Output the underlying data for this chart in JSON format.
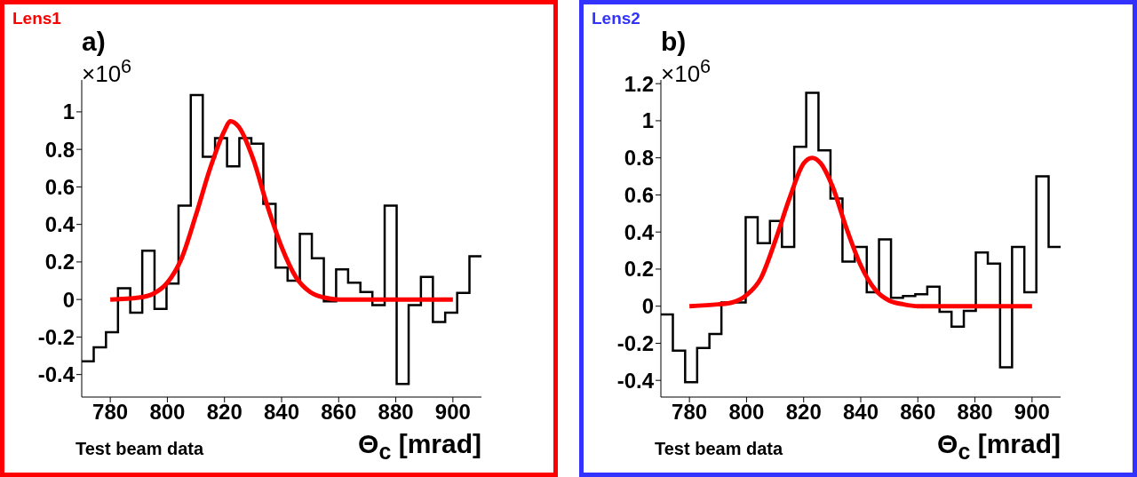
{
  "chart_data": [
    {
      "type": "histogram",
      "title": "Lens1",
      "subtitle": "a)",
      "xlabel": "Θ$_{c}$ [mrad]",
      "annotations": [
        "×10$^{6}$",
        "Test beam data"
      ],
      "bins": [
        770,
        774.2,
        778.5,
        782.7,
        787,
        791.2,
        795.5,
        799.7,
        803.9,
        808.2,
        812.4,
        816.7,
        820.9,
        825.2,
        829.4,
        833.6,
        837.9,
        842.1,
        846.4,
        850.6,
        854.8,
        859.1,
        863.3,
        867.6,
        871.8,
        876.1,
        880.3,
        884.5,
        888.8,
        893,
        897.3,
        901.5,
        905.8,
        910
      ],
      "series": [
        {
          "color": "#000000",
          "values": [
            -0.33,
            -0.255,
            -0.175,
            0.06,
            -0.07,
            0.26,
            -0.05,
            0.085,
            0.5,
            1.09,
            0.76,
            0.86,
            0.71,
            0.86,
            0.83,
            0.51,
            0.17,
            0.1,
            0.35,
            0.22,
            -0.01,
            0.16,
            0.09,
            0.04,
            -0.03,
            0.5,
            -0.45,
            -0.03,
            0.12,
            -0.12,
            -0.07,
            0.035,
            0.23
          ]
        },
        {
          "type": "line",
          "color": "#ff0000",
          "x": [
            780,
            790,
            795,
            800,
            805,
            810,
            815,
            820,
            822,
            825,
            830,
            835,
            840,
            845,
            850,
            855,
            860,
            900
          ],
          "values": [
            0,
            0.01,
            0.03,
            0.09,
            0.22,
            0.45,
            0.7,
            0.9,
            0.95,
            0.92,
            0.75,
            0.5,
            0.28,
            0.12,
            0.04,
            0.01,
            0,
            0
          ]
        }
      ],
      "xlim": [
        770,
        910
      ],
      "xticks": [
        780,
        800,
        820,
        840,
        860,
        880,
        900
      ],
      "ylim": [
        -0.52,
        1.17
      ],
      "yticks": [
        -0.4,
        -0.2,
        0,
        0.2,
        0.4,
        0.6,
        0.8,
        1
      ]
    },
    {
      "type": "histogram",
      "title": "Lens2",
      "subtitle": "b)",
      "xlabel": "Θ$_{c}$ [mrad]",
      "annotations": [
        "×10$^{6}$",
        "Test beam data"
      ],
      "bins": [
        770,
        774.2,
        778.5,
        782.7,
        787,
        791.2,
        795.5,
        799.7,
        803.9,
        808.2,
        812.4,
        816.7,
        820.9,
        825.2,
        829.4,
        833.6,
        837.9,
        842.1,
        846.4,
        850.6,
        854.8,
        859.1,
        863.3,
        867.6,
        871.8,
        876.1,
        880.3,
        884.5,
        888.8,
        893,
        897.3,
        901.5,
        905.8,
        910
      ],
      "series": [
        {
          "color": "#000000",
          "values": [
            -0.045,
            -0.24,
            -0.41,
            -0.225,
            -0.15,
            0.02,
            0.02,
            0.48,
            0.34,
            0.46,
            0.32,
            0.86,
            1.15,
            0.84,
            0.58,
            0.24,
            0.32,
            0.075,
            0.36,
            0.045,
            0.055,
            0.065,
            0.105,
            -0.03,
            -0.11,
            -0.025,
            0.29,
            0.23,
            -0.33,
            0.32,
            0.075,
            0.7,
            0.32
          ]
        },
        {
          "type": "line",
          "color": "#ff0000",
          "x": [
            780,
            790,
            795,
            800,
            805,
            810,
            815,
            820,
            823,
            826,
            830,
            835,
            840,
            845,
            850,
            855,
            860,
            900
          ],
          "values": [
            0,
            0.01,
            0.02,
            0.06,
            0.15,
            0.35,
            0.58,
            0.77,
            0.8,
            0.77,
            0.65,
            0.42,
            0.22,
            0.09,
            0.03,
            0.01,
            0,
            0
          ]
        }
      ],
      "xlim": [
        770,
        910
      ],
      "xticks": [
        780,
        800,
        820,
        840,
        860,
        880,
        900
      ],
      "ylim": [
        -0.49,
        1.22
      ],
      "yticks": [
        -0.4,
        -0.2,
        0,
        0.2,
        0.4,
        0.6,
        0.8,
        1,
        1.2
      ]
    }
  ]
}
